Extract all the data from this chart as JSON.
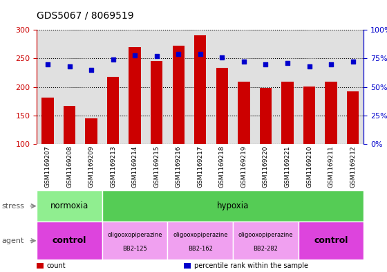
{
  "title": "GDS5067 / 8069519",
  "samples": [
    "GSM1169207",
    "GSM1169208",
    "GSM1169209",
    "GSM1169213",
    "GSM1169214",
    "GSM1169215",
    "GSM1169216",
    "GSM1169217",
    "GSM1169218",
    "GSM1169219",
    "GSM1169220",
    "GSM1169221",
    "GSM1169210",
    "GSM1169211",
    "GSM1169212"
  ],
  "counts": [
    181,
    167,
    145,
    218,
    270,
    246,
    272,
    290,
    234,
    209,
    198,
    209,
    201,
    210,
    192
  ],
  "percentiles": [
    70,
    68,
    65,
    74,
    78,
    77,
    79,
    79,
    76,
    72,
    70,
    71,
    68,
    70,
    72
  ],
  "ylim_left": [
    100,
    300
  ],
  "ylim_right": [
    0,
    100
  ],
  "yticks_left": [
    100,
    150,
    200,
    250,
    300
  ],
  "ytick_labels_left": [
    "100",
    "150",
    "200",
    "250",
    "300"
  ],
  "yticks_right": [
    0,
    25,
    50,
    75,
    100
  ],
  "ytick_labels_right": [
    "0%",
    "25%",
    "50%",
    "75%",
    "100%"
  ],
  "bar_color": "#cc0000",
  "dot_color": "#0000cc",
  "bar_width": 0.55,
  "stress_groups": [
    {
      "label": "normoxia",
      "start": 0,
      "end": 3,
      "bg": "#90ee90",
      "text_color": "#000000"
    },
    {
      "label": "hypoxia",
      "start": 3,
      "end": 15,
      "bg": "#55cc55",
      "text_color": "#000000"
    }
  ],
  "agent_groups": [
    {
      "label": "control",
      "start": 0,
      "end": 3,
      "bg": "#dd44dd",
      "text_color": "#000000",
      "small_text": ""
    },
    {
      "label": "oligooxopiperazine\nBB2-125",
      "start": 3,
      "end": 6,
      "bg": "#f0a0f0",
      "text_color": "#000000",
      "small_text": ""
    },
    {
      "label": "oligooxopiperazine\nBB2-162",
      "start": 6,
      "end": 9,
      "bg": "#f0a0f0",
      "text_color": "#000000",
      "small_text": ""
    },
    {
      "label": "oligooxopiperazine\nBB2-282",
      "start": 9,
      "end": 12,
      "bg": "#f0a0f0",
      "text_color": "#000000",
      "small_text": ""
    },
    {
      "label": "control",
      "start": 12,
      "end": 15,
      "bg": "#dd44dd",
      "text_color": "#000000",
      "small_text": ""
    }
  ],
  "legend_items": [
    {
      "color": "#cc0000",
      "label": "count"
    },
    {
      "color": "#0000cc",
      "label": "percentile rank within the sample"
    }
  ],
  "bg_color": "#ffffff",
  "chart_bg": "#e0e0e0",
  "tick_color_left": "#cc0000",
  "tick_color_right": "#0000cc",
  "label_row_bg": "#c8c8c8"
}
